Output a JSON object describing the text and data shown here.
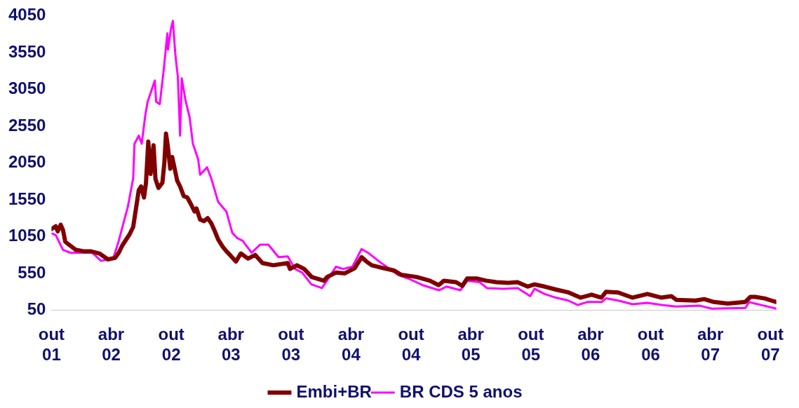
{
  "chart_data": {
    "type": "line",
    "xlim": [
      "2001-10-01",
      "2007-10-19"
    ],
    "xticks": [
      {
        "value": "2001-10-01",
        "label": "out 01"
      },
      {
        "value": "2002-04-01",
        "label": "abr 02"
      },
      {
        "value": "2002-10-01",
        "label": "out 02"
      },
      {
        "value": "2003-04-01",
        "label": "abr 03"
      },
      {
        "value": "2003-10-01",
        "label": "out 03"
      },
      {
        "value": "2004-04-01",
        "label": "abr 04"
      },
      {
        "value": "2004-10-01",
        "label": "out 04"
      },
      {
        "value": "2005-04-01",
        "label": "abr 05"
      },
      {
        "value": "2005-10-01",
        "label": "out 05"
      },
      {
        "value": "2006-04-01",
        "label": "abr 06"
      },
      {
        "value": "2006-10-01",
        "label": "out 06"
      },
      {
        "value": "2007-04-01",
        "label": "abr 07"
      },
      {
        "value": "2007-10-01",
        "label": "out 07"
      }
    ],
    "ylim": [
      50,
      4050
    ],
    "yticks": [
      50,
      550,
      1050,
      1550,
      2050,
      2550,
      3050,
      3550,
      4050
    ],
    "grid": false,
    "legend": "bottom",
    "marker": "none",
    "line_style": "solid",
    "series": [
      {
        "name": "Embi+BR",
        "color": "#800000",
        "x": [
          "2001-10-01",
          "2001-10-14",
          "2001-10-20",
          "2001-10-29",
          "2001-11-05",
          "2001-11-12",
          "2001-11-23",
          "2001-12-14",
          "2002-01-06",
          "2002-01-28",
          "2002-02-24",
          "2002-03-22",
          "2002-04-13",
          "2002-04-24",
          "2002-05-05",
          "2002-05-27",
          "2002-06-07",
          "2002-06-24",
          "2002-07-01",
          "2002-07-10",
          "2002-07-16",
          "2002-07-23",
          "2002-07-30",
          "2002-08-08",
          "2002-08-14",
          "2002-08-23",
          "2002-09-04",
          "2002-09-10",
          "2002-09-15",
          "2002-09-21",
          "2002-09-28",
          "2002-10-04",
          "2002-10-11",
          "2002-10-19",
          "2002-10-28",
          "2002-11-08",
          "2002-11-19",
          "2002-11-30",
          "2002-12-11",
          "2002-12-17",
          "2002-12-28",
          "2003-01-09",
          "2003-01-20",
          "2003-01-31",
          "2003-02-11",
          "2003-02-21",
          "2003-03-07",
          "2003-03-18",
          "2003-03-29",
          "2003-04-16",
          "2003-05-01",
          "2003-05-23",
          "2003-06-14",
          "2003-07-06",
          "2003-08-08",
          "2003-09-21",
          "2003-09-28",
          "2003-10-19",
          "2003-11-10",
          "2003-12-03",
          "2004-01-09",
          "2004-01-19",
          "2004-02-15",
          "2004-03-13",
          "2004-04-12",
          "2004-05-03",
          "2004-05-18",
          "2004-06-03",
          "2004-07-09",
          "2004-08-09",
          "2004-09-01",
          "2004-10-18",
          "2004-11-27",
          "2004-12-24",
          "2005-01-09",
          "2005-02-15",
          "2005-03-06",
          "2005-03-21",
          "2005-04-18",
          "2005-05-18",
          "2005-06-18",
          "2005-07-24",
          "2005-08-21",
          "2005-09-21",
          "2005-10-12",
          "2005-11-12",
          "2005-12-16",
          "2006-01-24",
          "2006-03-01",
          "2006-04-04",
          "2006-05-04",
          "2006-05-18",
          "2006-06-24",
          "2006-08-06",
          "2006-09-21",
          "2006-11-03",
          "2006-12-03",
          "2006-12-18",
          "2007-02-15",
          "2007-03-13",
          "2007-04-12",
          "2007-05-24",
          "2007-07-16",
          "2007-08-01",
          "2007-08-15",
          "2007-09-13",
          "2007-10-04",
          "2007-10-19"
        ],
        "values": [
          1150,
          1190,
          1120,
          1210,
          1140,
          980,
          940,
          870,
          850,
          850,
          820,
          740,
          760,
          830,
          930,
          1080,
          1180,
          1680,
          1730,
          1580,
          1780,
          2340,
          1900,
          2290,
          1830,
          1710,
          1780,
          2050,
          2450,
          2260,
          1970,
          2130,
          1980,
          1810,
          1730,
          1600,
          1580,
          1490,
          1390,
          1430,
          1280,
          1260,
          1300,
          1230,
          1120,
          1010,
          910,
          850,
          800,
          710,
          820,
          750,
          800,
          690,
          660,
          690,
          610,
          660,
          610,
          500,
          450,
          500,
          560,
          550,
          620,
          770,
          710,
          660,
          620,
          590,
          530,
          500,
          450,
          390,
          450,
          430,
          380,
          480,
          480,
          450,
          430,
          420,
          430,
          370,
          400,
          370,
          330,
          290,
          220,
          260,
          220,
          300,
          290,
          220,
          270,
          220,
          240,
          190,
          180,
          200,
          160,
          140,
          160,
          230,
          230,
          210,
          180,
          160
        ]
      },
      {
        "name": "BR CDS 5 anos",
        "color": "#ff00ff",
        "x": [
          "2001-10-03",
          "2001-10-14",
          "2001-11-05",
          "2001-11-27",
          "2001-12-26",
          "2002-02-02",
          "2002-03-01",
          "2002-04-07",
          "2002-04-24",
          "2002-05-22",
          "2002-06-07",
          "2002-06-11",
          "2002-06-24",
          "2002-07-03",
          "2002-07-14",
          "2002-07-21",
          "2002-08-12",
          "2002-08-16",
          "2002-08-27",
          "2002-09-08",
          "2002-09-19",
          "2002-09-21",
          "2002-09-30",
          "2002-10-06",
          "2002-10-13",
          "2002-10-17",
          "2002-10-21",
          "2002-10-28",
          "2002-11-02",
          "2002-11-13",
          "2002-11-26",
          "2002-12-06",
          "2002-12-22",
          "2002-12-28",
          "2003-01-18",
          "2003-01-31",
          "2003-02-21",
          "2003-03-18",
          "2003-04-05",
          "2003-04-20",
          "2003-05-07",
          "2003-06-03",
          "2003-06-29",
          "2003-07-24",
          "2003-08-24",
          "2003-09-21",
          "2003-10-13",
          "2003-11-04",
          "2003-12-02",
          "2004-01-03",
          "2004-01-20",
          "2004-02-15",
          "2004-03-08",
          "2004-04-05",
          "2004-05-03",
          "2004-05-26",
          "2004-06-26",
          "2004-07-24",
          "2004-08-22",
          "2004-09-22",
          "2004-11-05",
          "2004-12-25",
          "2005-01-17",
          "2005-02-28",
          "2005-03-21",
          "2005-04-28",
          "2005-05-20",
          "2005-07-09",
          "2005-08-22",
          "2005-09-29",
          "2005-10-12",
          "2005-11-12",
          "2005-12-16",
          "2006-01-23",
          "2006-02-21",
          "2006-03-22",
          "2006-05-05",
          "2006-05-18",
          "2006-06-24",
          "2006-08-07",
          "2006-09-21",
          "2006-11-04",
          "2006-12-17",
          "2007-02-28",
          "2007-04-05",
          "2007-07-17",
          "2007-07-28",
          "2007-08-15",
          "2007-09-13",
          "2007-10-19"
        ],
        "values": [
          1090,
          1070,
          870,
          830,
          830,
          830,
          720,
          750,
          990,
          1460,
          1840,
          2310,
          2420,
          2310,
          2700,
          2880,
          3170,
          2880,
          2850,
          3310,
          3810,
          3590,
          3870,
          3980,
          3550,
          3380,
          3230,
          2420,
          3200,
          2910,
          2670,
          2310,
          2100,
          1890,
          1990,
          1840,
          1520,
          1390,
          1100,
          1030,
          990,
          830,
          940,
          940,
          770,
          780,
          610,
          560,
          400,
          350,
          460,
          640,
          610,
          640,
          880,
          820,
          710,
          620,
          530,
          480,
          390,
          320,
          370,
          320,
          450,
          430,
          350,
          340,
          350,
          240,
          340,
          270,
          220,
          180,
          120,
          160,
          160,
          210,
          180,
          130,
          150,
          120,
          100,
          110,
          70,
          80,
          160,
          140,
          110,
          70
        ]
      }
    ]
  }
}
